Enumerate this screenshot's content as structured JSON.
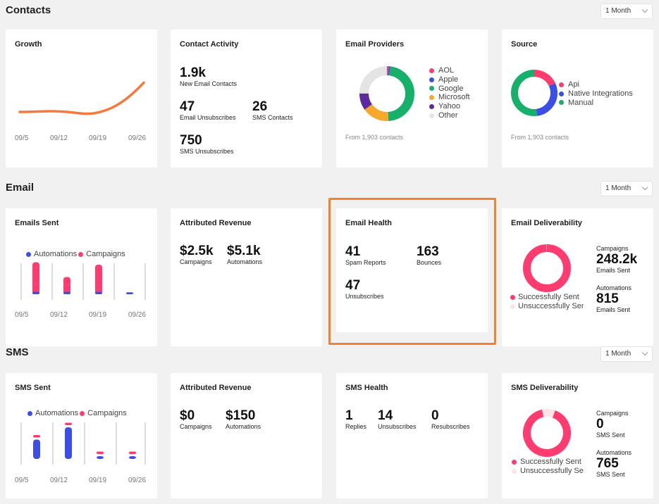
{
  "colors": {
    "accent": "#ff3b6f",
    "blue": "#3c4ee8",
    "green": "#17b06a",
    "orange": "#f6a72c",
    "purple": "#5b2a9e",
    "gray": "#e4e4e4",
    "line": "#f6793a",
    "highlight": "#f5822a"
  },
  "contacts": {
    "title": "Contacts",
    "period": "1 Month",
    "growth": {
      "title": "Growth",
      "x_labels": [
        "09/5",
        "09/12",
        "09/19",
        "09/26"
      ]
    },
    "activity": {
      "title": "Contact Activity",
      "new_email": {
        "value": "1.9k",
        "label": "New Email Contacts"
      },
      "email_unsub": {
        "value": "47",
        "label": "Email Unsubscribes"
      },
      "sms_contacts": {
        "value": "26",
        "label": "SMS Contacts"
      },
      "sms_unsub": {
        "value": "750",
        "label": "SMS Unsubscribes"
      }
    },
    "providers": {
      "title": "Email Providers",
      "legend": [
        {
          "name": "AOL",
          "color": "#ff3b6f"
        },
        {
          "name": "Apple",
          "color": "#3c4ee8"
        },
        {
          "name": "Google",
          "color": "#17b06a"
        },
        {
          "name": "Microsoft",
          "color": "#f6a72c"
        },
        {
          "name": "Yahoo",
          "color": "#5b2a9e"
        },
        {
          "name": "Other",
          "color": "#e4e4e4"
        }
      ],
      "footer": "From 1,903 contacts"
    },
    "source": {
      "title": "Source",
      "legend": [
        {
          "name": "Api",
          "color": "#ff3b6f"
        },
        {
          "name": "Native Integrations",
          "color": "#3c4ee8"
        },
        {
          "name": "Manual",
          "color": "#17b06a"
        }
      ],
      "footer": "From 1,903 contacts"
    }
  },
  "email": {
    "title": "Email",
    "period": "1 Month",
    "sent": {
      "title": "Emails Sent",
      "legend_a": "Automations",
      "legend_b": "Campaigns",
      "x_labels": [
        "09/5",
        "09/12",
        "09/19",
        "09/26"
      ]
    },
    "revenue": {
      "title": "Attributed Revenue",
      "campaigns": {
        "value": "$2.5k",
        "label": "Campaigns"
      },
      "automations": {
        "value": "$5.1k",
        "label": "Automations"
      }
    },
    "health": {
      "title": "Email Health",
      "spam": {
        "value": "41",
        "label": "Spam Reports"
      },
      "bounces": {
        "value": "163",
        "label": "Bounces"
      },
      "unsubs": {
        "value": "47",
        "label": "Unsubscribes"
      }
    },
    "deliverability": {
      "title": "Email Deliverability",
      "legend_a": "Successfully Sent",
      "legend_b": "Unsuccessfully Sent",
      "campaigns_label": "Campaigns",
      "campaigns_value": "248.2k",
      "campaigns_sub": "Emails Sent",
      "automations_label": "Automations",
      "automations_value": "815",
      "automations_sub": "Emails Sent"
    }
  },
  "sms": {
    "title": "SMS",
    "period": "1 Month",
    "sent": {
      "title": "SMS Sent",
      "legend_a": "Automations",
      "legend_b": "Campaigns",
      "x_labels": [
        "09/5",
        "09/12",
        "09/19",
        "09/26"
      ]
    },
    "revenue": {
      "title": "Attributed Revenue",
      "campaigns": {
        "value": "$0",
        "label": "Campaigns"
      },
      "automations": {
        "value": "$150",
        "label": "Automations"
      }
    },
    "health": {
      "title": "SMS Health",
      "replies": {
        "value": "1",
        "label": "Replies"
      },
      "unsubs": {
        "value": "14",
        "label": "Unsubscribes"
      },
      "resubs": {
        "value": "0",
        "label": "Resubscribes"
      }
    },
    "deliverability": {
      "title": "SMS Deliverability",
      "legend_a": "Successfully Sent",
      "legend_b": "Unsuccessfully Sent",
      "campaigns_label": "Campaigns",
      "campaigns_value": "0",
      "campaigns_sub": "SMS Sent",
      "automations_label": "Automations",
      "automations_value": "765",
      "automations_sub": "SMS Sent"
    }
  },
  "chart_data": [
    {
      "type": "line",
      "title": "Growth",
      "x": [
        "09/5",
        "09/12",
        "09/19",
        "09/26"
      ],
      "series": [
        {
          "name": "Contacts",
          "values": [
            10,
            11,
            10,
            62
          ]
        }
      ],
      "ylim": [
        0,
        100
      ]
    },
    {
      "type": "pie",
      "title": "Email Providers",
      "categories": [
        "AOL",
        "Apple",
        "Google",
        "Microsoft",
        "Yahoo",
        "Other"
      ],
      "values": [
        1,
        1,
        47,
        16,
        10,
        25
      ]
    },
    {
      "type": "pie",
      "title": "Source",
      "categories": [
        "Api",
        "Native Integrations",
        "Manual"
      ],
      "values": [
        18,
        30,
        52
      ]
    },
    {
      "type": "bar",
      "title": "Emails Sent",
      "categories": [
        "09/5",
        "09/12",
        "09/19",
        "09/26"
      ],
      "series": [
        {
          "name": "Automations",
          "values": [
            5,
            5,
            5,
            4
          ]
        },
        {
          "name": "Campaigns",
          "values": [
            60,
            30,
            55,
            0
          ]
        }
      ],
      "ylim": [
        0,
        100
      ]
    },
    {
      "type": "pie",
      "title": "Email Deliverability",
      "categories": [
        "Successfully Sent",
        "Unsuccessfully Sent"
      ],
      "values": [
        99.5,
        0.5
      ]
    },
    {
      "type": "bar",
      "title": "SMS Sent",
      "categories": [
        "09/5",
        "09/12",
        "09/19",
        "09/26"
      ],
      "series": [
        {
          "name": "Automations",
          "values": [
            55,
            90,
            8,
            8
          ]
        },
        {
          "name": "Campaigns",
          "values": [
            7,
            7,
            7,
            7
          ]
        }
      ],
      "ylim": [
        0,
        100
      ]
    },
    {
      "type": "pie",
      "title": "SMS Deliverability",
      "categories": [
        "Successfully Sent",
        "Unsuccessfully Sent"
      ],
      "values": [
        91,
        9
      ]
    }
  ]
}
